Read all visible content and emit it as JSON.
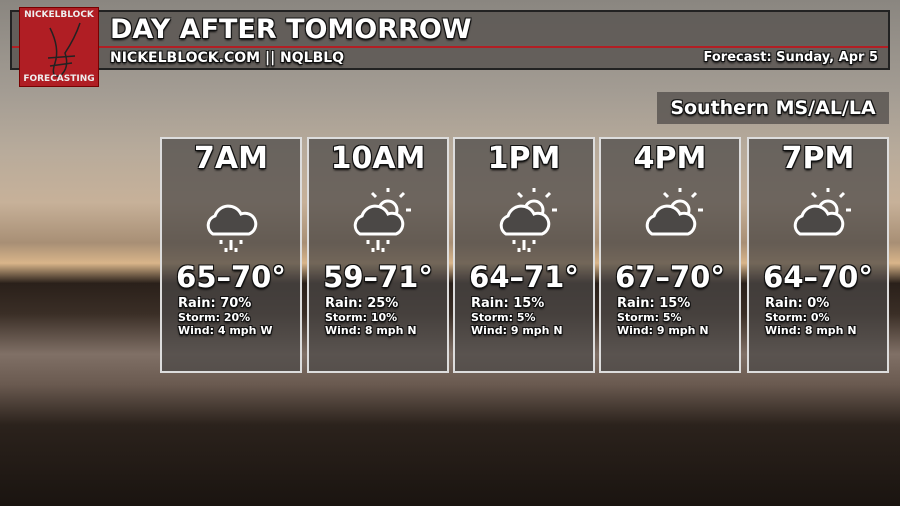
{
  "header": {
    "title": "DAY AFTER TOMORROW",
    "subtitle": "NICKELBLOCK.COM || NQLBLQ",
    "forecast_date": "Forecast: Sunday, Apr 5"
  },
  "logo": {
    "top": "NICKELBLOCK",
    "bottom": "FORECASTING"
  },
  "region": "Southern MS/AL/LA",
  "periods": [
    {
      "time": "7AM",
      "icon": "cloud-rain-icon",
      "temp": "65–70°",
      "rain": "Rain: 70%",
      "storm": "Storm: 20%",
      "wind": "Wind: 4 mph W"
    },
    {
      "time": "10AM",
      "icon": "partly-cloudy-rain-icon",
      "temp": "59–71°",
      "rain": "Rain: 25%",
      "storm": "Storm: 10%",
      "wind": "Wind: 8 mph N"
    },
    {
      "time": "1PM",
      "icon": "partly-cloudy-rain-icon",
      "temp": "64–71°",
      "rain": "Rain: 15%",
      "storm": "Storm: 5%",
      "wind": "Wind: 9 mph N"
    },
    {
      "time": "4PM",
      "icon": "partly-cloudy-icon",
      "temp": "67–70°",
      "rain": "Rain: 15%",
      "storm": "Storm: 5%",
      "wind": "Wind: 9 mph N"
    },
    {
      "time": "7PM",
      "icon": "partly-cloudy-icon",
      "temp": "64–70°",
      "rain": "Rain: 0%",
      "storm": "Storm: 0%",
      "wind": "Wind: 8 mph N"
    }
  ]
}
